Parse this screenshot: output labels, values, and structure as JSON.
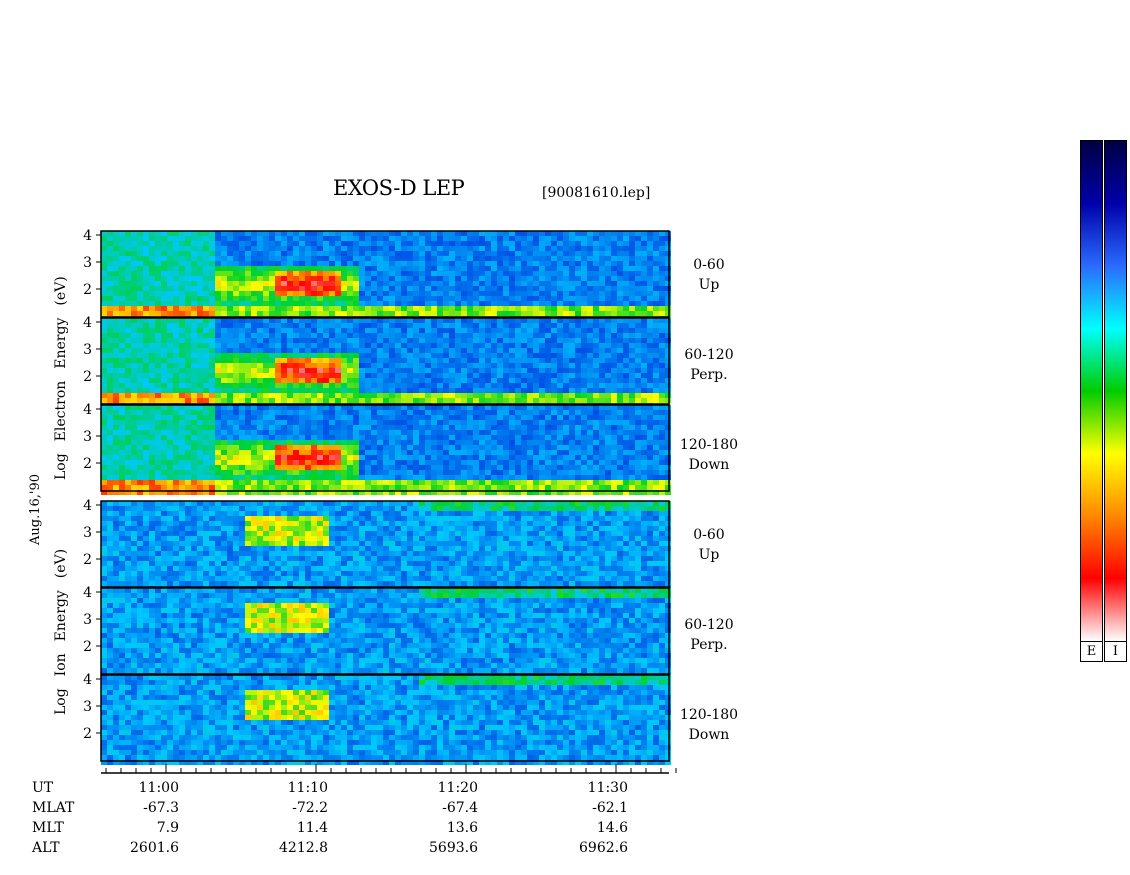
{
  "title": "EXOS-D LEP",
  "filename": "[90081610.lep]",
  "date_label": "Aug.16,'90",
  "electron_ylabel": [
    "Log",
    "Electron",
    "Energy",
    "(eV)"
  ],
  "ion_ylabel": [
    "Log",
    "Ion",
    "Energy",
    "(eV)"
  ],
  "panels": [
    {
      "range": "0-60",
      "dir": "Up"
    },
    {
      "range": "60-120",
      "dir": "Perp."
    },
    {
      "range": "120-180",
      "dir": "Down"
    },
    {
      "range": "0-60",
      "dir": "Up"
    },
    {
      "range": "60-120",
      "dir": "Perp."
    },
    {
      "range": "120-180",
      "dir": "Down"
    }
  ],
  "colorbar_keys": [
    "E",
    "I"
  ],
  "colorbar_colors": [
    "#ffffff",
    "#ff0000",
    "#ff8800",
    "#ffff00",
    "#00cc00",
    "#00ffff",
    "#2a6bff",
    "#0000aa",
    "#000044"
  ],
  "rows": [
    {
      "label": "UT",
      "values": [
        "11:00",
        "11:10",
        "11:20",
        "11:30"
      ]
    },
    {
      "label": "MLAT",
      "values": [
        "-67.3",
        "-72.2",
        "-67.4",
        "-62.1"
      ]
    },
    {
      "label": "MLT",
      "values": [
        "7.9",
        "11.4",
        "13.6",
        "14.6"
      ]
    },
    {
      "label": "ALT",
      "values": [
        "2601.6",
        "4212.8",
        "5693.6",
        "6962.6"
      ]
    }
  ],
  "chart_data": {
    "type": "heatmap",
    "title": "EXOS-D LEP",
    "xlabel": "UT",
    "ylabel": "Log Energy (eV)",
    "y_ticks": [
      "2",
      "3",
      "4"
    ],
    "x_ticks": [
      "11:00",
      "11:10",
      "11:20",
      "11:30"
    ],
    "series": [
      {
        "name": "Electron 0-60 Up"
      },
      {
        "name": "Electron 60-120 Perp."
      },
      {
        "name": "Electron 120-180 Down"
      },
      {
        "name": "Ion 0-60 Up"
      },
      {
        "name": "Ion 60-120 Perp."
      },
      {
        "name": "Ion 120-180 Down"
      }
    ],
    "legend": "right"
  }
}
